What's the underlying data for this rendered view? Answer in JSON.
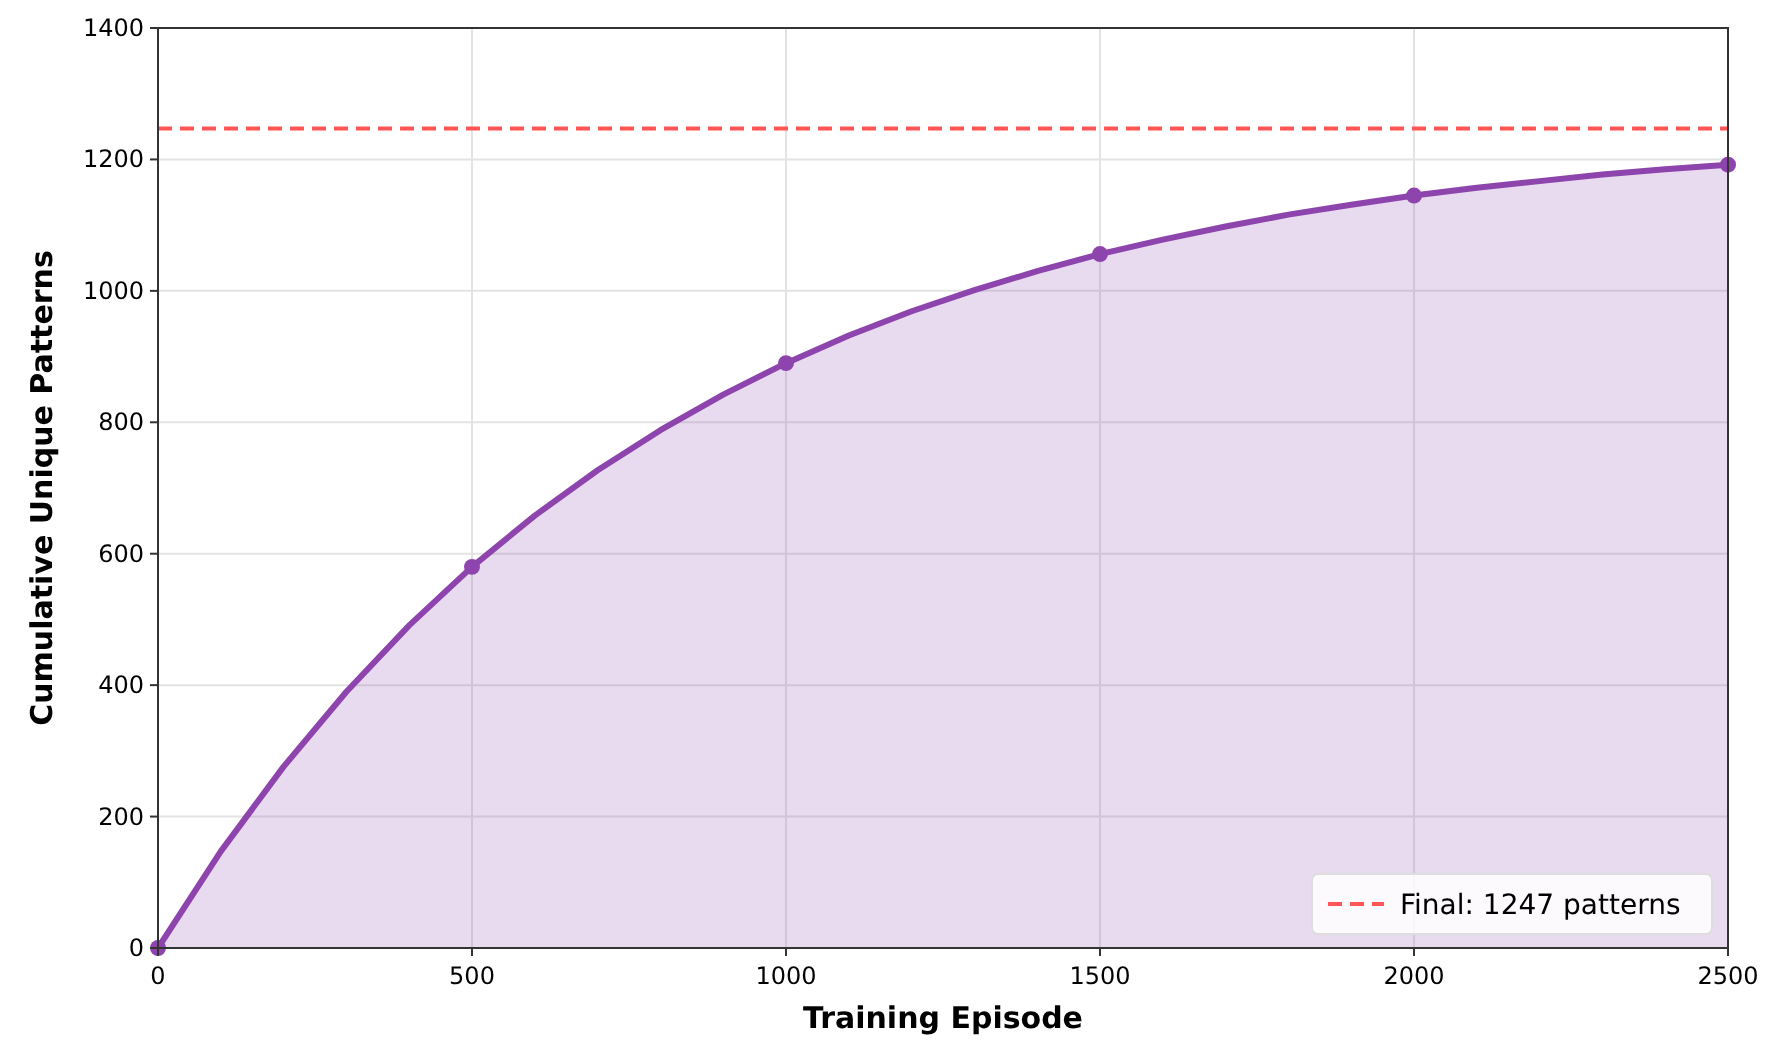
{
  "chart_data": {
    "type": "area",
    "xlabel": "Training Episode",
    "ylabel": "Cumulative Unique Patterns",
    "xlim": [
      0,
      2500
    ],
    "xticks": [
      0,
      500,
      1000,
      1500,
      2000,
      2500
    ],
    "ylim": [
      0,
      1400
    ],
    "yticks": [
      0,
      200,
      400,
      600,
      800,
      1000,
      1200,
      1400
    ],
    "grid": true,
    "legend": "bottom right",
    "series": [
      {
        "color": "#8e44ad",
        "marker": "none",
        "x": [
          0,
          100,
          200,
          300,
          400,
          500,
          600,
          700,
          800,
          900,
          1000,
          1100,
          1200,
          1300,
          1400,
          1500,
          1600,
          1700,
          1800,
          1900,
          2000,
          2100,
          2200,
          2300,
          2400,
          2500
        ],
        "values": [
          0,
          147,
          276,
          390,
          491,
          580,
          658,
          727,
          788,
          842,
          890,
          932,
          969,
          1001,
          1030,
          1056,
          1078,
          1098,
          1116,
          1131,
          1145,
          1157,
          1167,
          1177,
          1185,
          1192
        ]
      },
      {
        "type": "scatter",
        "color": "#8e44ad",
        "marker": "circle",
        "x": [
          0,
          500,
          1000,
          1500,
          2000,
          2500
        ],
        "values": [
          0,
          580,
          890,
          1056,
          1145,
          1192
        ]
      }
    ],
    "ref_lines": [
      {
        "axis": "y",
        "value": 1247,
        "label": "Final: 1247 patterns",
        "color": "#ff5555",
        "line_style": "dashed"
      }
    ]
  }
}
